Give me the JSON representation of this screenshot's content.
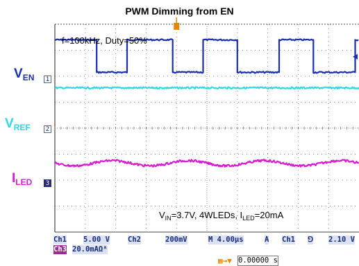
{
  "chart_data": {
    "type": "line",
    "title": "PWM Dimming from EN",
    "annotations": {
      "frequency": "f=100kHz, Duty=50%",
      "vin_label": "V",
      "vin_sub": "IN",
      "vin_rest": "=3.7V, 4WLEDs, I",
      "iled_sub": "LED",
      "iled_rest": "=20mA"
    },
    "channel_labels": [
      {
        "main": "V",
        "sub": "EN",
        "marker": "1",
        "color": "#1a2fb0"
      },
      {
        "main": "V",
        "sub": "REF",
        "marker": "2",
        "color": "#2ed8e6"
      },
      {
        "main": "I",
        "sub": "LED",
        "marker": "3",
        "color": "#d81bd0"
      }
    ],
    "x_units": "µs",
    "time_per_div_us": 4,
    "x_range_us": [
      -16,
      24
    ],
    "series": [
      {
        "name": "VEN",
        "channel": 1,
        "scale": "5.00 V/div",
        "color": "#1a2fb0",
        "type": "square",
        "period_us": 10,
        "duty": 0.5,
        "high_div": 1.25,
        "low_div": 0.0,
        "baseline_div": 3.4,
        "edges_us": [
          -16.0,
          -10.5,
          -6.5,
          -0.5,
          3.5,
          8.0,
          13.5,
          18.0,
          23.5
        ]
      },
      {
        "name": "VREF",
        "channel": 2,
        "scale": "200mV/div",
        "color": "#2ed8e6",
        "type": "flat",
        "level_div": 1.55
      },
      {
        "name": "ILED",
        "channel": 3,
        "scale": "20.0mA/div",
        "color": "#d81bd0",
        "type": "ripple",
        "level_div": -1.35,
        "ripple_div": 0.1,
        "ripple_period_us": 10
      }
    ]
  },
  "status_bar": {
    "ch1": "Ch1",
    "ch1_scale": "5.00 V",
    "ch2": "Ch2",
    "ch2_scale": "200mV",
    "timebase": "M 4.00µs",
    "trig_mode": "A",
    "trig_src": "Ch1",
    "trig_slope": "⅁",
    "trig_level": "2.10 V",
    "ch3": "Ch3",
    "ch3_scale": "20.0mAΩᴬ",
    "trig_pos": "0.00000 s"
  },
  "colors": {
    "ch1": "#1a2fb0",
    "ch2": "#2ed8e6",
    "ch3": "#d81bd0",
    "trigger": "#e08a00",
    "grid": "#8a8a8a"
  }
}
